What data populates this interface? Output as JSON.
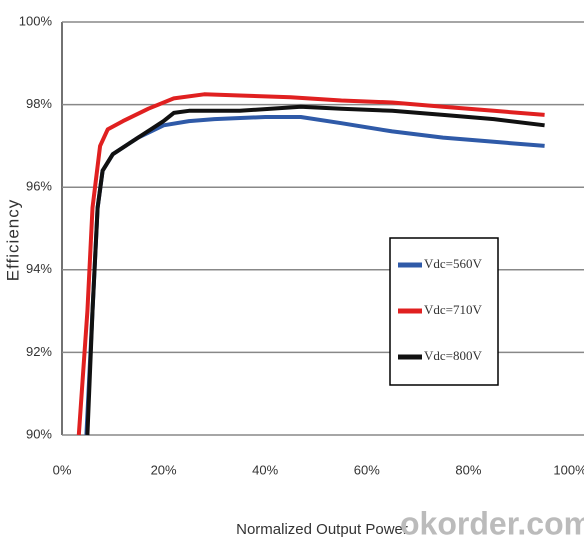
{
  "chart_data": {
    "type": "line",
    "x_label": "Normalized Output Power",
    "y_label": "Efficiency",
    "watermark": "okorder.com",
    "xlim": [
      0,
      100
    ],
    "xticks": [
      {
        "value": 0,
        "label": "0%"
      },
      {
        "value": 20,
        "label": "20%"
      },
      {
        "value": 40,
        "label": "40%"
      },
      {
        "value": 60,
        "label": "60%"
      },
      {
        "value": 80,
        "label": "80%"
      },
      {
        "value": 100,
        "label": "100%"
      }
    ],
    "ylim": [
      90,
      100
    ],
    "yticks": [
      {
        "value": 90,
        "label": "90%"
      },
      {
        "value": 92,
        "label": "92%"
      },
      {
        "value": 94,
        "label": "94%"
      },
      {
        "value": 96,
        "label": "96%"
      },
      {
        "value": 98,
        "label": "98%"
      },
      {
        "value": 100,
        "label": "100%"
      }
    ],
    "grid": true,
    "legend": "center-right",
    "series": [
      {
        "name": "Vdc=560V",
        "color": "#2f5aa8",
        "x": [
          4.8,
          6,
          7,
          8,
          10,
          15,
          20,
          25,
          30,
          40,
          47,
          55,
          65,
          75,
          85,
          95
        ],
        "values": [
          90,
          93,
          95.5,
          96.4,
          96.8,
          97.2,
          97.5,
          97.6,
          97.65,
          97.7,
          97.7,
          97.55,
          97.35,
          97.2,
          97.1,
          97.0
        ]
      },
      {
        "name": "Vdc=710V",
        "color": "#e02020",
        "x": [
          3.3,
          5,
          6,
          7.5,
          9,
          12,
          17,
          22,
          28,
          35,
          45,
          55,
          65,
          75,
          85,
          95
        ],
        "values": [
          90,
          93,
          95.5,
          97,
          97.4,
          97.6,
          97.9,
          98.15,
          98.25,
          98.22,
          98.18,
          98.1,
          98.05,
          97.95,
          97.85,
          97.75
        ]
      },
      {
        "name": "Vdc=800V",
        "color": "#111111",
        "x": [
          5,
          6,
          7,
          8,
          10,
          15,
          20,
          22,
          25,
          35,
          47,
          55,
          65,
          75,
          85,
          95
        ],
        "values": [
          90,
          93,
          95.5,
          96.4,
          96.8,
          97.2,
          97.6,
          97.8,
          97.85,
          97.85,
          97.95,
          97.9,
          97.85,
          97.75,
          97.65,
          97.5
        ]
      }
    ]
  }
}
